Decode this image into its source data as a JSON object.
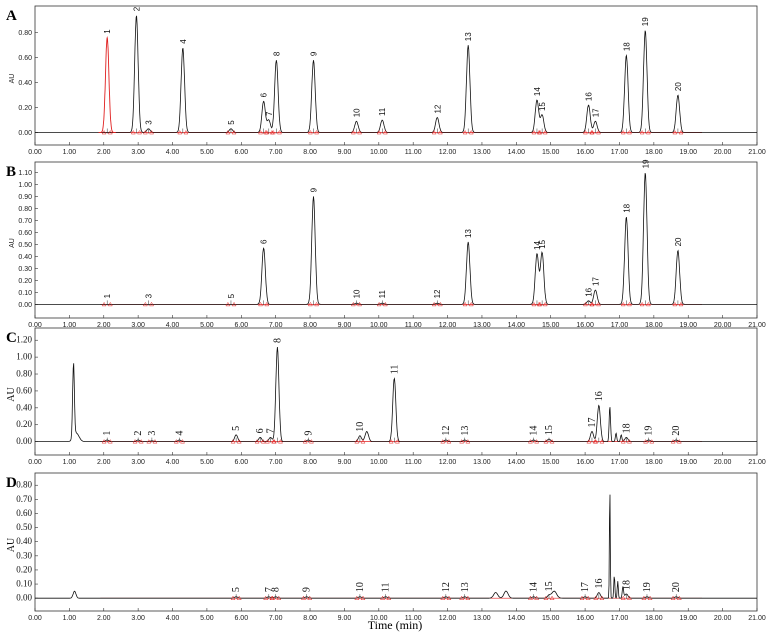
{
  "chart_data": {
    "type": "line",
    "xlabel": "Time (min)",
    "ylabel": "AU",
    "xlim": [
      0,
      21
    ],
    "x_ticks": [
      "0.00",
      "1.00",
      "2.00",
      "3.00",
      "4.00",
      "5.00",
      "6.00",
      "7.00",
      "8.00",
      "9.00",
      "10.00",
      "11.00",
      "12.00",
      "13.00",
      "14.00",
      "15.00",
      "16.00",
      "17.00",
      "18.00",
      "19.00",
      "20.00",
      "21.00"
    ],
    "grid": false,
    "colors": {
      "trace": "#111111",
      "red_trace": "#e02020",
      "baseline": "#e02020",
      "markers": "#e02020"
    },
    "panels": [
      {
        "letter": "A",
        "ylim": [
          -0.02,
          0.95
        ],
        "y_ticks": [
          "0.00",
          "0.20",
          "0.40",
          "0.60",
          "0.80"
        ],
        "peaks": [
          {
            "label": "1",
            "x": 2.1,
            "y": 0.76,
            "color": "red"
          },
          {
            "label": "2",
            "x": 2.95,
            "y": 0.94
          },
          {
            "label": "3",
            "x": 3.3,
            "y": 0.03
          },
          {
            "label": "4",
            "x": 4.3,
            "y": 0.68
          },
          {
            "label": "5",
            "x": 5.7,
            "y": 0.03
          },
          {
            "label": "6",
            "x": 6.65,
            "y": 0.25
          },
          {
            "label": "7",
            "x": 6.8,
            "y": 0.1
          },
          {
            "label": "8",
            "x": 7.02,
            "y": 0.58
          },
          {
            "label": "9",
            "x": 8.1,
            "y": 0.58
          },
          {
            "label": "10",
            "x": 9.35,
            "y": 0.09
          },
          {
            "label": "11",
            "x": 10.1,
            "y": 0.1
          },
          {
            "label": "12",
            "x": 11.7,
            "y": 0.12
          },
          {
            "label": "13",
            "x": 12.6,
            "y": 0.7
          },
          {
            "label": "14",
            "x": 14.6,
            "y": 0.26
          },
          {
            "label": "15",
            "x": 14.75,
            "y": 0.14
          },
          {
            "label": "16",
            "x": 16.1,
            "y": 0.22
          },
          {
            "label": "17",
            "x": 16.3,
            "y": 0.09
          },
          {
            "label": "18",
            "x": 17.2,
            "y": 0.62
          },
          {
            "label": "19",
            "x": 17.75,
            "y": 0.82
          },
          {
            "label": "20",
            "x": 18.7,
            "y": 0.3
          }
        ]
      },
      {
        "letter": "B",
        "ylim": [
          -0.03,
          1.12
        ],
        "y_ticks": [
          "0.00",
          "0.10",
          "0.20",
          "0.30",
          "0.40",
          "0.50",
          "0.60",
          "0.70",
          "0.80",
          "0.90",
          "1.00",
          "1.10"
        ],
        "peaks": [
          {
            "label": "1",
            "x": 2.1,
            "y": 0.0
          },
          {
            "label": "3",
            "x": 3.3,
            "y": 0.0
          },
          {
            "label": "5",
            "x": 5.7,
            "y": 0.0
          },
          {
            "label": "6",
            "x": 6.65,
            "y": 0.47
          },
          {
            "label": "9",
            "x": 8.1,
            "y": 0.9
          },
          {
            "label": "10",
            "x": 9.35,
            "y": 0.01
          },
          {
            "label": "11",
            "x": 10.1,
            "y": 0.01
          },
          {
            "label": "12",
            "x": 11.7,
            "y": 0.01
          },
          {
            "label": "13",
            "x": 12.6,
            "y": 0.52
          },
          {
            "label": "14",
            "x": 14.6,
            "y": 0.42
          },
          {
            "label": "15",
            "x": 14.75,
            "y": 0.43
          },
          {
            "label": "16",
            "x": 16.1,
            "y": 0.03
          },
          {
            "label": "17",
            "x": 16.3,
            "y": 0.12
          },
          {
            "label": "18",
            "x": 17.2,
            "y": 0.73
          },
          {
            "label": "19",
            "x": 17.75,
            "y": 1.1
          },
          {
            "label": "20",
            "x": 18.7,
            "y": 0.45
          }
        ]
      },
      {
        "letter": "C",
        "ylim": [
          -0.04,
          1.25
        ],
        "y_ticks": [
          "0.00",
          "0.20",
          "0.40",
          "0.60",
          "0.80",
          "1.00",
          "1.20"
        ],
        "peaks": [
          {
            "label": "1",
            "x": 2.1,
            "y": 0.02
          },
          {
            "label": "2",
            "x": 3.0,
            "y": 0.02
          },
          {
            "label": "3",
            "x": 3.4,
            "y": 0.01
          },
          {
            "label": "4",
            "x": 4.2,
            "y": 0.02
          },
          {
            "label": "5",
            "x": 5.85,
            "y": 0.08
          },
          {
            "label": "6",
            "x": 6.55,
            "y": 0.05
          },
          {
            "label": "7",
            "x": 6.85,
            "y": 0.05
          },
          {
            "label": "8",
            "x": 7.05,
            "y": 1.12
          },
          {
            "label": "9",
            "x": 7.95,
            "y": 0.02
          },
          {
            "label": "10",
            "x": 9.45,
            "y": 0.07
          },
          {
            "label": "11",
            "x": 10.45,
            "y": 0.75
          },
          {
            "label": "12",
            "x": 11.95,
            "y": 0.02
          },
          {
            "label": "13",
            "x": 12.5,
            "y": 0.02
          },
          {
            "label": "14",
            "x": 14.5,
            "y": 0.02
          },
          {
            "label": "15",
            "x": 14.95,
            "y": 0.03
          },
          {
            "label": "16",
            "x": 16.4,
            "y": 0.43
          },
          {
            "label": "17",
            "x": 16.2,
            "y": 0.12
          },
          {
            "label": "18",
            "x": 17.2,
            "y": 0.05
          },
          {
            "label": "19",
            "x": 17.85,
            "y": 0.02
          },
          {
            "label": "20",
            "x": 18.65,
            "y": 0.02
          }
        ]
      },
      {
        "letter": "D",
        "ylim": [
          -0.02,
          0.83
        ],
        "y_ticks": [
          "0.00",
          "0.10",
          "0.20",
          "0.30",
          "0.40",
          "0.50",
          "0.60",
          "0.70",
          "0.80"
        ],
        "peaks": [
          {
            "label": "5",
            "x": 5.85,
            "y": 0.01
          },
          {
            "label": "7",
            "x": 6.8,
            "y": 0.01
          },
          {
            "label": "8",
            "x": 7.0,
            "y": 0.01
          },
          {
            "label": "9",
            "x": 7.9,
            "y": 0.01
          },
          {
            "label": "10",
            "x": 9.45,
            "y": 0.01
          },
          {
            "label": "11",
            "x": 10.2,
            "y": 0.01
          },
          {
            "label": "12",
            "x": 11.95,
            "y": 0.01
          },
          {
            "label": "13",
            "x": 12.5,
            "y": 0.01
          },
          {
            "label": "14",
            "x": 14.5,
            "y": 0.01
          },
          {
            "label": "15",
            "x": 14.95,
            "y": 0.02
          },
          {
            "label": "16",
            "x": 16.4,
            "y": 0.04
          },
          {
            "label": "17",
            "x": 16.0,
            "y": 0.01
          },
          {
            "label": "18",
            "x": 17.2,
            "y": 0.03
          },
          {
            "label": "19",
            "x": 17.8,
            "y": 0.01
          },
          {
            "label": "20",
            "x": 18.65,
            "y": 0.01
          }
        ]
      }
    ]
  }
}
